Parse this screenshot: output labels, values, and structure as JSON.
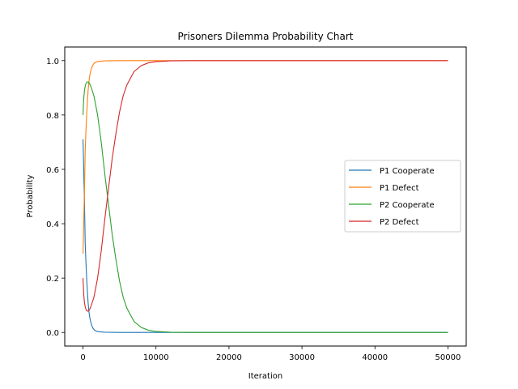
{
  "chart_data": {
    "type": "line",
    "title": "Prisoners Dilemma Probability Chart",
    "xlabel": "Iteration",
    "ylabel": "Probability",
    "xlim": [
      -2500,
      52500
    ],
    "ylim": [
      -0.05,
      1.05
    ],
    "x_ticks": [
      0,
      10000,
      20000,
      30000,
      40000,
      50000
    ],
    "x_tick_labels": [
      "0",
      "10000",
      "20000",
      "30000",
      "40000",
      "50000"
    ],
    "y_ticks": [
      0.0,
      0.2,
      0.4,
      0.6,
      0.8,
      1.0
    ],
    "y_tick_labels": [
      "0.0",
      "0.2",
      "0.4",
      "0.6",
      "0.8",
      "1.0"
    ],
    "grid": false,
    "legend_position": "center-right",
    "series": [
      {
        "name": "P1 Cooperate",
        "color": "#1f77b4",
        "x": [
          0,
          50,
          100,
          150,
          200,
          250,
          300,
          400,
          500,
          600,
          700,
          800,
          900,
          1000,
          1200,
          1400,
          1600,
          2000,
          3000,
          5000,
          10000,
          20000,
          30000,
          40000,
          50000
        ],
        "y": [
          0.71,
          0.66,
          0.6,
          0.54,
          0.48,
          0.41,
          0.33,
          0.26,
          0.2,
          0.15,
          0.11,
          0.08,
          0.06,
          0.045,
          0.025,
          0.014,
          0.008,
          0.003,
          0.001,
          0.0,
          0.0,
          0.0,
          0.0,
          0.0,
          0.0
        ]
      },
      {
        "name": "P1 Defect",
        "color": "#ff7f0e",
        "x": [
          0,
          50,
          100,
          150,
          200,
          250,
          300,
          400,
          500,
          600,
          700,
          800,
          900,
          1000,
          1200,
          1400,
          1600,
          2000,
          3000,
          5000,
          10000,
          20000,
          30000,
          40000,
          50000
        ],
        "y": [
          0.29,
          0.34,
          0.4,
          0.46,
          0.52,
          0.59,
          0.67,
          0.74,
          0.8,
          0.85,
          0.89,
          0.92,
          0.94,
          0.955,
          0.975,
          0.986,
          0.992,
          0.997,
          0.999,
          1.0,
          1.0,
          1.0,
          1.0,
          1.0,
          1.0
        ]
      },
      {
        "name": "P2 Cooperate",
        "color": "#2ca02c",
        "x": [
          0,
          100,
          200,
          300,
          400,
          500,
          600,
          800,
          1000,
          1200,
          1500,
          2000,
          2500,
          3000,
          3500,
          4000,
          4500,
          5000,
          5500,
          6000,
          7000,
          8000,
          9000,
          10000,
          12000,
          15000,
          20000,
          30000,
          40000,
          50000
        ],
        "y": [
          0.8,
          0.86,
          0.89,
          0.905,
          0.915,
          0.92,
          0.922,
          0.92,
          0.91,
          0.895,
          0.87,
          0.8,
          0.7,
          0.58,
          0.47,
          0.36,
          0.27,
          0.19,
          0.13,
          0.09,
          0.04,
          0.018,
          0.008,
          0.004,
          0.001,
          0.0,
          0.0,
          0.0,
          0.0,
          0.0
        ]
      },
      {
        "name": "P2 Defect",
        "color": "#d62728",
        "x": [
          0,
          100,
          200,
          300,
          400,
          500,
          600,
          800,
          1000,
          1200,
          1500,
          2000,
          2500,
          3000,
          3500,
          4000,
          4500,
          5000,
          5500,
          6000,
          7000,
          8000,
          9000,
          10000,
          12000,
          15000,
          20000,
          30000,
          40000,
          50000
        ],
        "y": [
          0.2,
          0.14,
          0.11,
          0.095,
          0.085,
          0.08,
          0.078,
          0.08,
          0.09,
          0.105,
          0.13,
          0.2,
          0.3,
          0.42,
          0.53,
          0.64,
          0.73,
          0.81,
          0.87,
          0.91,
          0.96,
          0.982,
          0.992,
          0.996,
          0.999,
          1.0,
          1.0,
          1.0,
          1.0,
          1.0
        ]
      }
    ]
  }
}
